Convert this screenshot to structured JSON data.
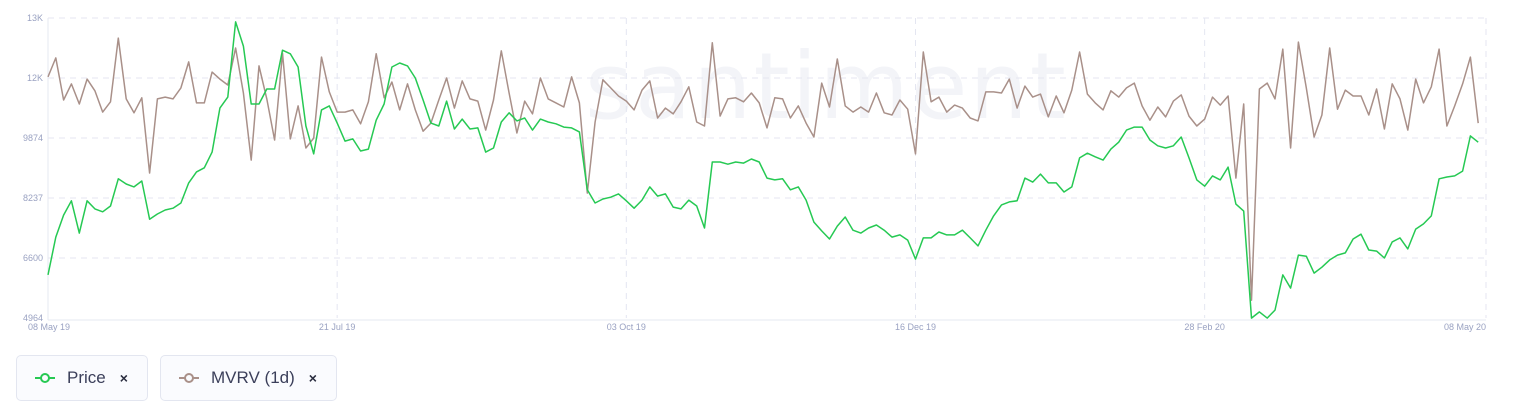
{
  "watermark": "santiment",
  "legend": [
    {
      "label": "Price",
      "color": "#26c953",
      "icon": "line-circle-icon",
      "close": "×"
    },
    {
      "label": "MVRV (1d)",
      "color": "#a99089",
      "icon": "line-circle-icon",
      "close": "×"
    }
  ],
  "chart_data": {
    "type": "line",
    "title": "",
    "xlabel": "",
    "ylabel": "",
    "x_interval": "2 days per point, 08 May 19 to 08 May 20",
    "x_ticks": [
      {
        "index": 0,
        "label": "08 May 19"
      },
      {
        "index": 37,
        "label": "21 Jul 19"
      },
      {
        "index": 74,
        "label": "03 Oct 19"
      },
      {
        "index": 111,
        "label": "16 Dec 19"
      },
      {
        "index": 148,
        "label": "28 Feb 20"
      },
      {
        "index": 183,
        "label": "08 May 20"
      }
    ],
    "y_ticks": [
      {
        "value": 4964,
        "label": "4964"
      },
      {
        "value": 6600,
        "label": "6600"
      },
      {
        "value": 8237,
        "label": "8237"
      },
      {
        "value": 9874,
        "label": "9874"
      },
      {
        "value": 11510,
        "label": "12K"
      },
      {
        "value": 13147,
        "label": "13K"
      }
    ],
    "ylim": [
      4964,
      13147
    ],
    "xlim": [
      0,
      184
    ],
    "grid": true,
    "legend_position": "bottom-left",
    "series": [
      {
        "name": "Price",
        "color": "#26c953",
        "values": [
          6140,
          7170,
          7770,
          8160,
          7280,
          8160,
          7940,
          7860,
          8020,
          8760,
          8620,
          8540,
          8700,
          7660,
          7800,
          7910,
          7960,
          8100,
          8650,
          8950,
          9060,
          9490,
          10690,
          10990,
          13040,
          12380,
          10800,
          10800,
          11210,
          11210,
          12270,
          12170,
          11810,
          10200,
          9440,
          10640,
          10750,
          10280,
          9790,
          9850,
          9520,
          9570,
          10360,
          10800,
          11810,
          11920,
          11840,
          11510,
          10910,
          10280,
          10200,
          10880,
          10120,
          10390,
          10120,
          10150,
          9490,
          9600,
          10310,
          10560,
          10340,
          10420,
          10090,
          10390,
          10310,
          10260,
          10170,
          10150,
          10040,
          8460,
          8100,
          8210,
          8260,
          8350,
          8160,
          7960,
          8180,
          8540,
          8290,
          8350,
          7990,
          7940,
          8180,
          8020,
          7420,
          9220,
          9220,
          9160,
          9220,
          9190,
          9300,
          9220,
          8780,
          8730,
          8760,
          8460,
          8540,
          8180,
          7580,
          7340,
          7120,
          7470,
          7720,
          7360,
          7280,
          7420,
          7500,
          7360,
          7170,
          7230,
          7090,
          6570,
          7150,
          7150,
          7310,
          7230,
          7230,
          7360,
          7150,
          6930,
          7360,
          7750,
          8050,
          8130,
          8160,
          8780,
          8670,
          8890,
          8650,
          8650,
          8400,
          8540,
          9330,
          9460,
          9360,
          9270,
          9570,
          9760,
          10090,
          10170,
          10170,
          9820,
          9660,
          9600,
          9660,
          9900,
          9330,
          8730,
          8560,
          8840,
          8730,
          9080,
          8070,
          7880,
          4960,
          5130,
          4960,
          5180,
          6140,
          5780,
          6680,
          6650,
          6190,
          6350,
          6550,
          6680,
          6740,
          7120,
          7250,
          6820,
          6790,
          6600,
          7040,
          7150,
          6850,
          7390,
          7530,
          7750,
          8760,
          8810,
          8840,
          8970,
          9930,
          9760
        ]
      },
      {
        "name": "MVRV (1d)",
        "color": "#a99089",
        "values": [
          11540,
          12060,
          10910,
          11350,
          10800,
          11480,
          11160,
          10580,
          10860,
          12600,
          10940,
          10560,
          10970,
          8920,
          10940,
          10990,
          10940,
          11240,
          11950,
          10830,
          10830,
          11670,
          11480,
          11320,
          12330,
          11100,
          9270,
          11840,
          10940,
          9820,
          12190,
          9850,
          10750,
          9600,
          9870,
          12080,
          11130,
          10580,
          10580,
          10640,
          10260,
          10860,
          12170,
          10970,
          11400,
          10640,
          11350,
          10640,
          10060,
          10280,
          10910,
          11510,
          10690,
          11430,
          10940,
          10880,
          10090,
          10910,
          12250,
          11100,
          10010,
          10880,
          10530,
          11510,
          10940,
          10830,
          10720,
          11540,
          10830,
          8370,
          10310,
          11460,
          11240,
          11020,
          10880,
          10640,
          11180,
          11430,
          10420,
          10690,
          10530,
          10860,
          11270,
          10310,
          10200,
          12470,
          10470,
          10940,
          10970,
          10860,
          11100,
          10830,
          10150,
          10970,
          10940,
          10420,
          10750,
          10280,
          9900,
          11370,
          10720,
          12030,
          10750,
          10580,
          10720,
          10580,
          11100,
          10560,
          10500,
          10910,
          10660,
          9440,
          12220,
          10860,
          10990,
          10580,
          10770,
          10690,
          10420,
          10340,
          11130,
          11130,
          11100,
          11480,
          10690,
          11290,
          10990,
          11070,
          10450,
          11020,
          10560,
          11180,
          12220,
          11070,
          10830,
          10640,
          11160,
          10990,
          11240,
          11370,
          10750,
          10360,
          10720,
          10450,
          10880,
          11050,
          10470,
          10200,
          10390,
          10990,
          10770,
          11020,
          8780,
          10800,
          5450,
          11210,
          11370,
          10940,
          12300,
          9600,
          12490,
          11240,
          9900,
          10500,
          12330,
          10660,
          11180,
          11020,
          11020,
          10500,
          11210,
          10120,
          11350,
          10940,
          10090,
          11480,
          10830,
          11270,
          12300,
          10200,
          10750,
          11350,
          12080,
          10280
        ]
      }
    ]
  }
}
